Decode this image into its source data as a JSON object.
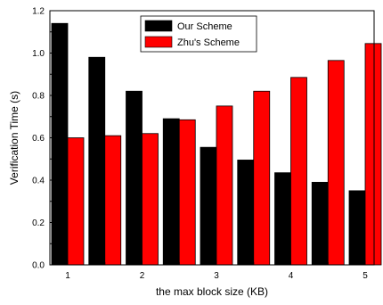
{
  "chart_data": {
    "type": "bar",
    "xlabel": "the max block size (KB)",
    "ylabel": "Verification Time (s)",
    "ylim": [
      0,
      1.2
    ],
    "yticks": [
      "0.0",
      "0.2",
      "0.4",
      "0.6",
      "0.8",
      "1.0",
      "1.2"
    ],
    "yticks_values": [
      0,
      0.2,
      0.4,
      0.6,
      0.8,
      1.0,
      1.2
    ],
    "xticks": [
      "1",
      "2",
      "3",
      "4",
      "5"
    ],
    "legend_position": "top-center",
    "grid": false,
    "categories": [
      "1",
      "1.5",
      "2",
      "2.5",
      "3",
      "3.5",
      "4",
      "4.5",
      "5"
    ],
    "series": [
      {
        "name": "Our Scheme",
        "color": "#000000",
        "values": [
          1.14,
          0.98,
          0.82,
          0.69,
          0.555,
          0.495,
          0.435,
          0.39,
          0.35
        ]
      },
      {
        "name": "Zhu's Scheme",
        "color": "#ff0000",
        "values": [
          0.6,
          0.61,
          0.62,
          0.685,
          0.75,
          0.82,
          0.885,
          0.965,
          1.045
        ]
      }
    ]
  }
}
